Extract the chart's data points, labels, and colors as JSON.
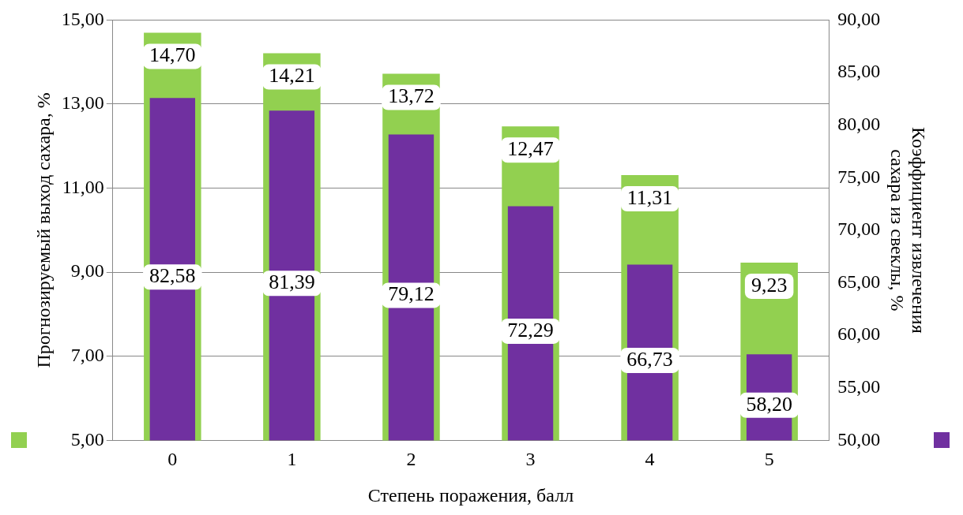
{
  "chart_data": {
    "type": "bar",
    "xlabel": "Степень поражения, балл",
    "ylabel": "Прогнозируемый выход сахара, %",
    "y2label": "Коэффициент извлечения сахара из свеклы, %",
    "categories": [
      "0",
      "1",
      "2",
      "3",
      "4",
      "5"
    ],
    "series": [
      {
        "color": "#92d050",
        "values": [
          14.7,
          14.21,
          13.72,
          12.47,
          11.31,
          9.23
        ],
        "value_labels": [
          "14,70",
          "14,21",
          "13,72",
          "12,47",
          "11,31",
          "9,23"
        ]
      },
      {
        "color": "#7030a0",
        "axis": "y2",
        "values": [
          82.58,
          81.39,
          79.12,
          72.29,
          66.73,
          58.2
        ],
        "value_labels": [
          "82,58",
          "81,39",
          "79,12",
          "72,29",
          "66,73",
          "58,20"
        ]
      }
    ],
    "ylim": [
      5,
      15
    ],
    "yticks": [
      {
        "value": 5,
        "label": "5,00"
      },
      {
        "value": 7,
        "label": "7,00"
      },
      {
        "value": 9,
        "label": "9,00"
      },
      {
        "value": 11,
        "label": "11,00"
      },
      {
        "value": 13,
        "label": "13,00"
      },
      {
        "value": 15,
        "label": "15,00"
      }
    ],
    "y2lim": [
      50,
      90
    ],
    "y2ticks": [
      {
        "value": 50,
        "label": "50,00"
      },
      {
        "value": 55,
        "label": "55,00"
      },
      {
        "value": 60,
        "label": "60,00"
      },
      {
        "value": 65,
        "label": "65,00"
      },
      {
        "value": 70,
        "label": "70,00"
      },
      {
        "value": 75,
        "label": "75,00"
      },
      {
        "value": 80,
        "label": "80,00"
      },
      {
        "value": 85,
        "label": "85,00"
      },
      {
        "value": 90,
        "label": "90,00"
      }
    ],
    "grid": "y"
  }
}
